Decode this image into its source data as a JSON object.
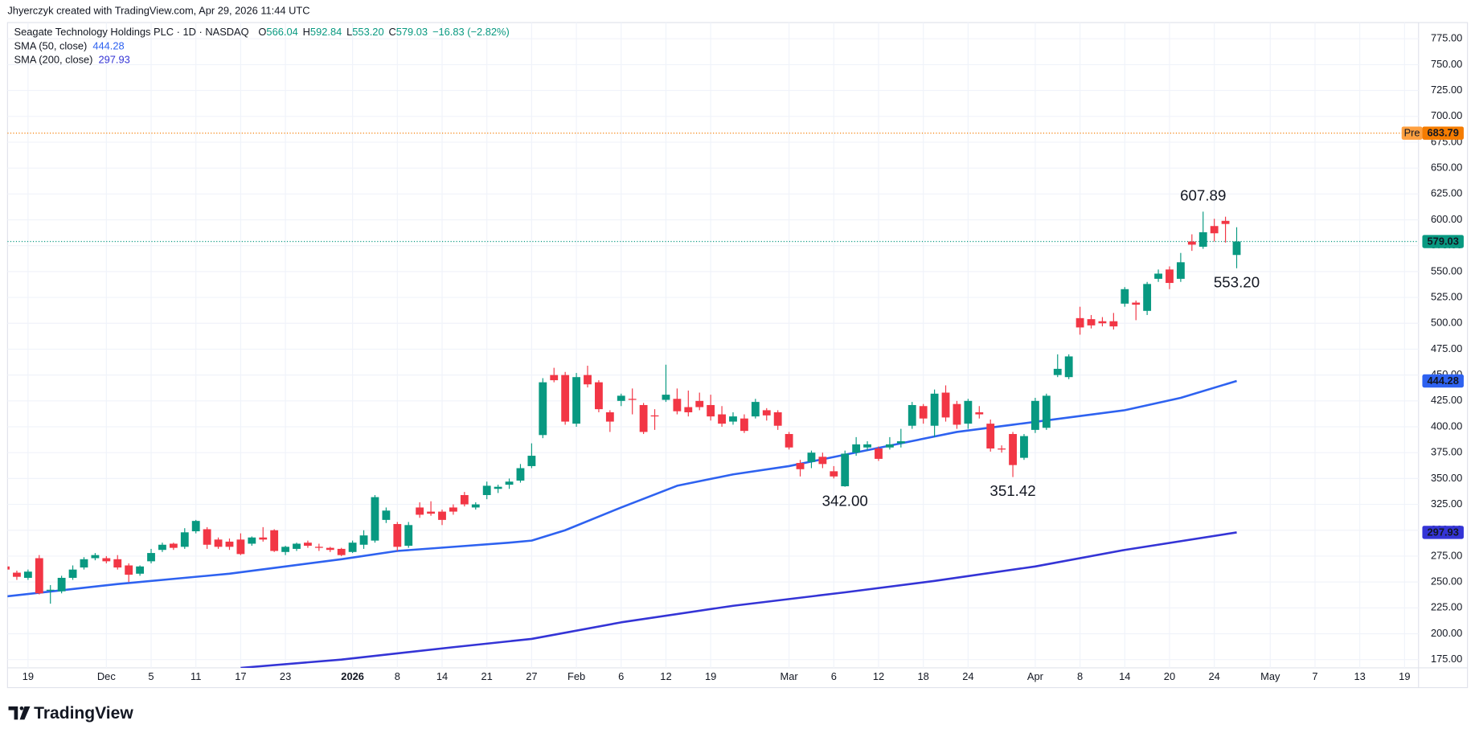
{
  "header": {
    "credit": "Jhyerczyk created with TradingView.com, Apr 29, 2026 11:44 UTC",
    "symbol": "Seagate Technology Holdings PLC · 1D · NASDAQ",
    "ohlc": [
      {
        "key": "O",
        "value": "566.04"
      },
      {
        "key": "H",
        "value": "592.84"
      },
      {
        "key": "L",
        "value": "553.20"
      },
      {
        "key": "C",
        "value": "579.03"
      }
    ],
    "change": "−16.83 (−2.82%)"
  },
  "footer": {
    "logo": "TradingView"
  },
  "chart_data": {
    "type": "candlestick",
    "up_color": "#089981",
    "down_color": "#f23645",
    "grid": true,
    "candles": {
      "open": [
        265,
        259,
        254,
        273,
        242,
        241,
        254,
        264,
        273,
        273,
        272,
        266,
        258,
        270,
        281,
        287,
        284,
        299,
        301,
        291,
        289,
        291,
        287,
        293,
        300,
        279,
        282,
        288,
        284,
        283,
        282,
        279,
        286,
        290,
        310,
        306,
        285,
        322,
        318,
        318,
        322,
        334,
        322,
        334,
        340,
        344,
        348,
        362,
        392,
        450,
        450,
        403,
        450,
        443,
        414,
        425,
        427,
        421,
        411,
        426,
        427,
        419,
        425,
        421,
        412,
        405,
        408,
        410,
        416,
        414,
        393,
        365,
        366,
        371,
        357,
        342.5,
        375,
        380,
        379,
        380,
        384,
        401,
        420,
        401,
        433,
        422,
        403,
        414,
        403,
        379,
        393,
        370,
        397,
        399,
        450,
        448,
        505,
        504,
        502,
        502,
        519,
        520,
        512,
        543,
        552,
        543,
        579,
        574,
        594,
        599,
        566.04
      ],
      "high": [
        266,
        261,
        262,
        276,
        247,
        256,
        266,
        274,
        278,
        275,
        276,
        268,
        266,
        282,
        288,
        288,
        302,
        310,
        303,
        293,
        292,
        297,
        294,
        303,
        301,
        285,
        288,
        290,
        287,
        284,
        283,
        290,
        300,
        334,
        322,
        308,
        308,
        327,
        328,
        320,
        325,
        337,
        327,
        347,
        344,
        350,
        364,
        384,
        447,
        457,
        453,
        452,
        459,
        445,
        416,
        432,
        437,
        423,
        417,
        460,
        437,
        435,
        433,
        431,
        420,
        414,
        412,
        427,
        418,
        416,
        395,
        368,
        377,
        375,
        362,
        377,
        390,
        386,
        381,
        390,
        398,
        424,
        422,
        436,
        440,
        425,
        427,
        420,
        407,
        382,
        395,
        393,
        428,
        432,
        470,
        470,
        516,
        508,
        506,
        510,
        535,
        522,
        540,
        552,
        555,
        568,
        586,
        607.89,
        601,
        603,
        592.84
      ],
      "low": [
        260,
        252,
        252,
        238,
        229,
        239,
        252,
        262,
        271,
        268,
        262,
        250,
        256,
        268,
        279,
        281,
        282,
        297,
        282,
        282,
        281,
        276,
        285,
        289,
        279,
        276,
        280,
        283,
        280,
        279,
        275,
        278,
        282,
        288,
        307,
        280,
        283,
        312,
        314,
        305,
        315,
        323,
        320,
        330,
        336,
        340,
        346,
        360,
        389,
        443,
        402,
        400,
        438,
        414,
        395,
        420,
        412,
        393,
        397,
        424,
        412,
        410,
        416,
        406,
        400,
        402,
        394,
        408,
        406,
        397,
        378,
        352,
        360,
        360,
        350,
        342,
        372,
        377,
        367,
        378,
        380,
        398,
        403,
        390,
        405,
        398,
        398,
        408,
        376,
        375,
        351.42,
        368,
        394,
        397,
        448,
        446,
        489,
        495,
        497,
        494,
        516,
        503,
        508,
        540,
        533,
        540,
        570,
        572,
        579,
        578,
        553.2
      ],
      "close": [
        262,
        255,
        260,
        239,
        242.5,
        254,
        262,
        272,
        276,
        270,
        264,
        257,
        265,
        278,
        286,
        283,
        298,
        309,
        286,
        284,
        284,
        277,
        293,
        291,
        280,
        284,
        287,
        285,
        283,
        281,
        276,
        288,
        295,
        332,
        319,
        284,
        305,
        315,
        316,
        310,
        318,
        325,
        325,
        343,
        342,
        347,
        360,
        372,
        443,
        445,
        405,
        448,
        441,
        417,
        405,
        430,
        426,
        395,
        410,
        431,
        415,
        414,
        419,
        410,
        403,
        410,
        396,
        424,
        411,
        401,
        380,
        359,
        375,
        364,
        352,
        374,
        383,
        383,
        369,
        383,
        386,
        421,
        408,
        432,
        409,
        402,
        425,
        412,
        379,
        378,
        363,
        391,
        425,
        430,
        456,
        468,
        496,
        498,
        500,
        497,
        533,
        518,
        538,
        548,
        539,
        559,
        576,
        588,
        587,
        596,
        579.03
      ]
    },
    "series": [
      {
        "name": "SMA (50, close)",
        "color": "#2e62f0",
        "x": [
          0,
          5,
          10,
          15,
          20,
          25,
          30,
          35,
          40,
          45,
          47,
          50,
          55,
          60,
          65,
          70,
          75,
          80,
          85,
          90,
          95,
          100,
          105,
          110
        ],
        "values": [
          236,
          242,
          248,
          253,
          258,
          265,
          272,
          280,
          284,
          288,
          290,
          300,
          322,
          343,
          354,
          362,
          373,
          384,
          395,
          402,
          409,
          416,
          428,
          444.28
        ]
      },
      {
        "name": "SMA (200, close)",
        "color": "#3434d6",
        "x": [
          21,
          30,
          40,
          47,
          55,
          65,
          75,
          83,
          92,
          100,
          110
        ],
        "values": [
          167,
          175,
          187,
          195,
          211,
          227,
          240,
          251,
          265,
          281,
          297.93
        ]
      }
    ],
    "price_lines": [
      {
        "label": "Pre",
        "value": 683.79,
        "color": "#f57c00",
        "label_color": "#ffa040"
      },
      {
        "value": 579.03,
        "color": "#089981"
      }
    ],
    "annotations": [
      {
        "label": "607.89",
        "value": 607.89,
        "x": 107,
        "position": "above"
      },
      {
        "label": "553.20",
        "value": 553.2,
        "x": 110,
        "position": "below"
      },
      {
        "label": "342.00",
        "value": 342,
        "x": 75,
        "position": "below"
      },
      {
        "label": "351.42",
        "value": 351.42,
        "x": 90,
        "position": "below"
      }
    ],
    "xlim": [
      0,
      126
    ],
    "ylim": [
      167,
      787
    ],
    "xticks": [
      {
        "value": 2,
        "label": "19"
      },
      {
        "value": 9,
        "label": "Dec"
      },
      {
        "value": 13,
        "label": "5"
      },
      {
        "value": 17,
        "label": "11"
      },
      {
        "value": 21,
        "label": "17"
      },
      {
        "value": 25,
        "label": "23"
      },
      {
        "value": 31,
        "label": "2026"
      },
      {
        "value": 35,
        "label": "8"
      },
      {
        "value": 39,
        "label": "14"
      },
      {
        "value": 43,
        "label": "21"
      },
      {
        "value": 47,
        "label": "27"
      },
      {
        "value": 51,
        "label": "Feb"
      },
      {
        "value": 55,
        "label": "6"
      },
      {
        "value": 59,
        "label": "12"
      },
      {
        "value": 63,
        "label": "19"
      },
      {
        "value": 70,
        "label": "Mar"
      },
      {
        "value": 74,
        "label": "6"
      },
      {
        "value": 78,
        "label": "12"
      },
      {
        "value": 82,
        "label": "18"
      },
      {
        "value": 86,
        "label": "24"
      },
      {
        "value": 92,
        "label": "Apr"
      },
      {
        "value": 96,
        "label": "8"
      },
      {
        "value": 100,
        "label": "14"
      },
      {
        "value": 104,
        "label": "20"
      },
      {
        "value": 108,
        "label": "24"
      },
      {
        "value": 113,
        "label": "May"
      },
      {
        "value": 117,
        "label": "7"
      },
      {
        "value": 121,
        "label": "13"
      },
      {
        "value": 125,
        "label": "19"
      }
    ],
    "yticks": [
      {
        "value": 175,
        "label": "175.00"
      },
      {
        "value": 200,
        "label": "200.00"
      },
      {
        "value": 225,
        "label": "225.00"
      },
      {
        "value": 250,
        "label": "250.00"
      },
      {
        "value": 275,
        "label": "275.00"
      },
      {
        "value": 300,
        "label": "300.00"
      },
      {
        "value": 325,
        "label": "325.00"
      },
      {
        "value": 350,
        "label": "350.00"
      },
      {
        "value": 375,
        "label": "375.00"
      },
      {
        "value": 400,
        "label": "400.00"
      },
      {
        "value": 425,
        "label": "425.00"
      },
      {
        "value": 450,
        "label": "450.00"
      },
      {
        "value": 475,
        "label": "475.00"
      },
      {
        "value": 500,
        "label": "500.00"
      },
      {
        "value": 525,
        "label": "525.00"
      },
      {
        "value": 550,
        "label": "550.00"
      },
      {
        "value": 575,
        "label": "575.00"
      },
      {
        "value": 600,
        "label": "600.00"
      },
      {
        "value": 625,
        "label": "625.00"
      },
      {
        "value": 650,
        "label": "650.00"
      },
      {
        "value": 675,
        "label": "675.00"
      },
      {
        "value": 700,
        "label": "700.00"
      },
      {
        "value": 725,
        "label": "725.00"
      },
      {
        "value": 750,
        "label": "750.00"
      },
      {
        "value": 775,
        "label": "775.00"
      }
    ]
  }
}
